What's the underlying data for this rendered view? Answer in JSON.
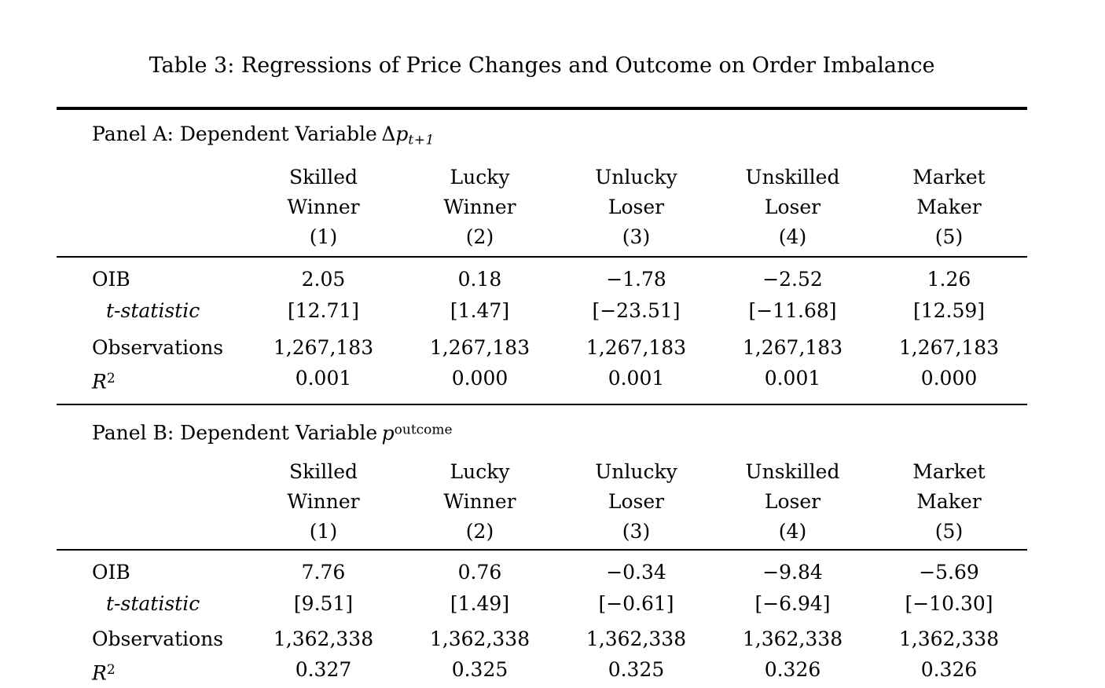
{
  "title": "Table 3: Regressions of Price Changes and Outcome on Order Imbalance",
  "row_labels": {
    "oib": "OIB",
    "tstat": "t-statistic",
    "obs": "Observations",
    "r2_base": "R",
    "r2_sup": "2"
  },
  "panels": [
    {
      "label_text": "Panel A: Dependent Variable",
      "dep_var": {
        "prefix": "Δ",
        "letter": "p",
        "sub": "t+1"
      },
      "columns": [
        {
          "l1": "Skilled",
          "l2": "Winner",
          "num": "(1)"
        },
        {
          "l1": "Lucky",
          "l2": "Winner",
          "num": "(2)"
        },
        {
          "l1": "Unlucky",
          "l2": "Loser",
          "num": "(3)"
        },
        {
          "l1": "Unskilled",
          "l2": "Loser",
          "num": "(4)"
        },
        {
          "l1": "Market",
          "l2": "Maker",
          "num": "(5)"
        }
      ],
      "oib": [
        "2.05",
        "0.18",
        "−1.78",
        "−2.52",
        "1.26"
      ],
      "tstat": [
        "[12.71]",
        "[1.47]",
        "[−23.51]",
        "[−11.68]",
        "[12.59]"
      ],
      "obs": [
        "1,267,183",
        "1,267,183",
        "1,267,183",
        "1,267,183",
        "1,267,183"
      ],
      "r2": [
        "0.001",
        "0.000",
        "0.001",
        "0.001",
        "0.000"
      ]
    },
    {
      "label_text": "Panel B: Dependent Variable",
      "dep_var": {
        "letter": "p",
        "sup": "outcome"
      },
      "columns": [
        {
          "l1": "Skilled",
          "l2": "Winner",
          "num": "(1)"
        },
        {
          "l1": "Lucky",
          "l2": "Winner",
          "num": "(2)"
        },
        {
          "l1": "Unlucky",
          "l2": "Loser",
          "num": "(3)"
        },
        {
          "l1": "Unskilled",
          "l2": "Loser",
          "num": "(4)"
        },
        {
          "l1": "Market",
          "l2": "Maker",
          "num": "(5)"
        }
      ],
      "oib": [
        "7.76",
        "0.76",
        "−0.34",
        "−9.84",
        "−5.69"
      ],
      "tstat": [
        "[9.51]",
        "[1.49]",
        "[−0.61]",
        "[−6.94]",
        "[−10.30]"
      ],
      "obs": [
        "1,362,338",
        "1,362,338",
        "1,362,338",
        "1,362,338",
        "1,362,338"
      ],
      "r2": [
        "0.327",
        "0.325",
        "0.325",
        "0.326",
        "0.326"
      ]
    }
  ]
}
